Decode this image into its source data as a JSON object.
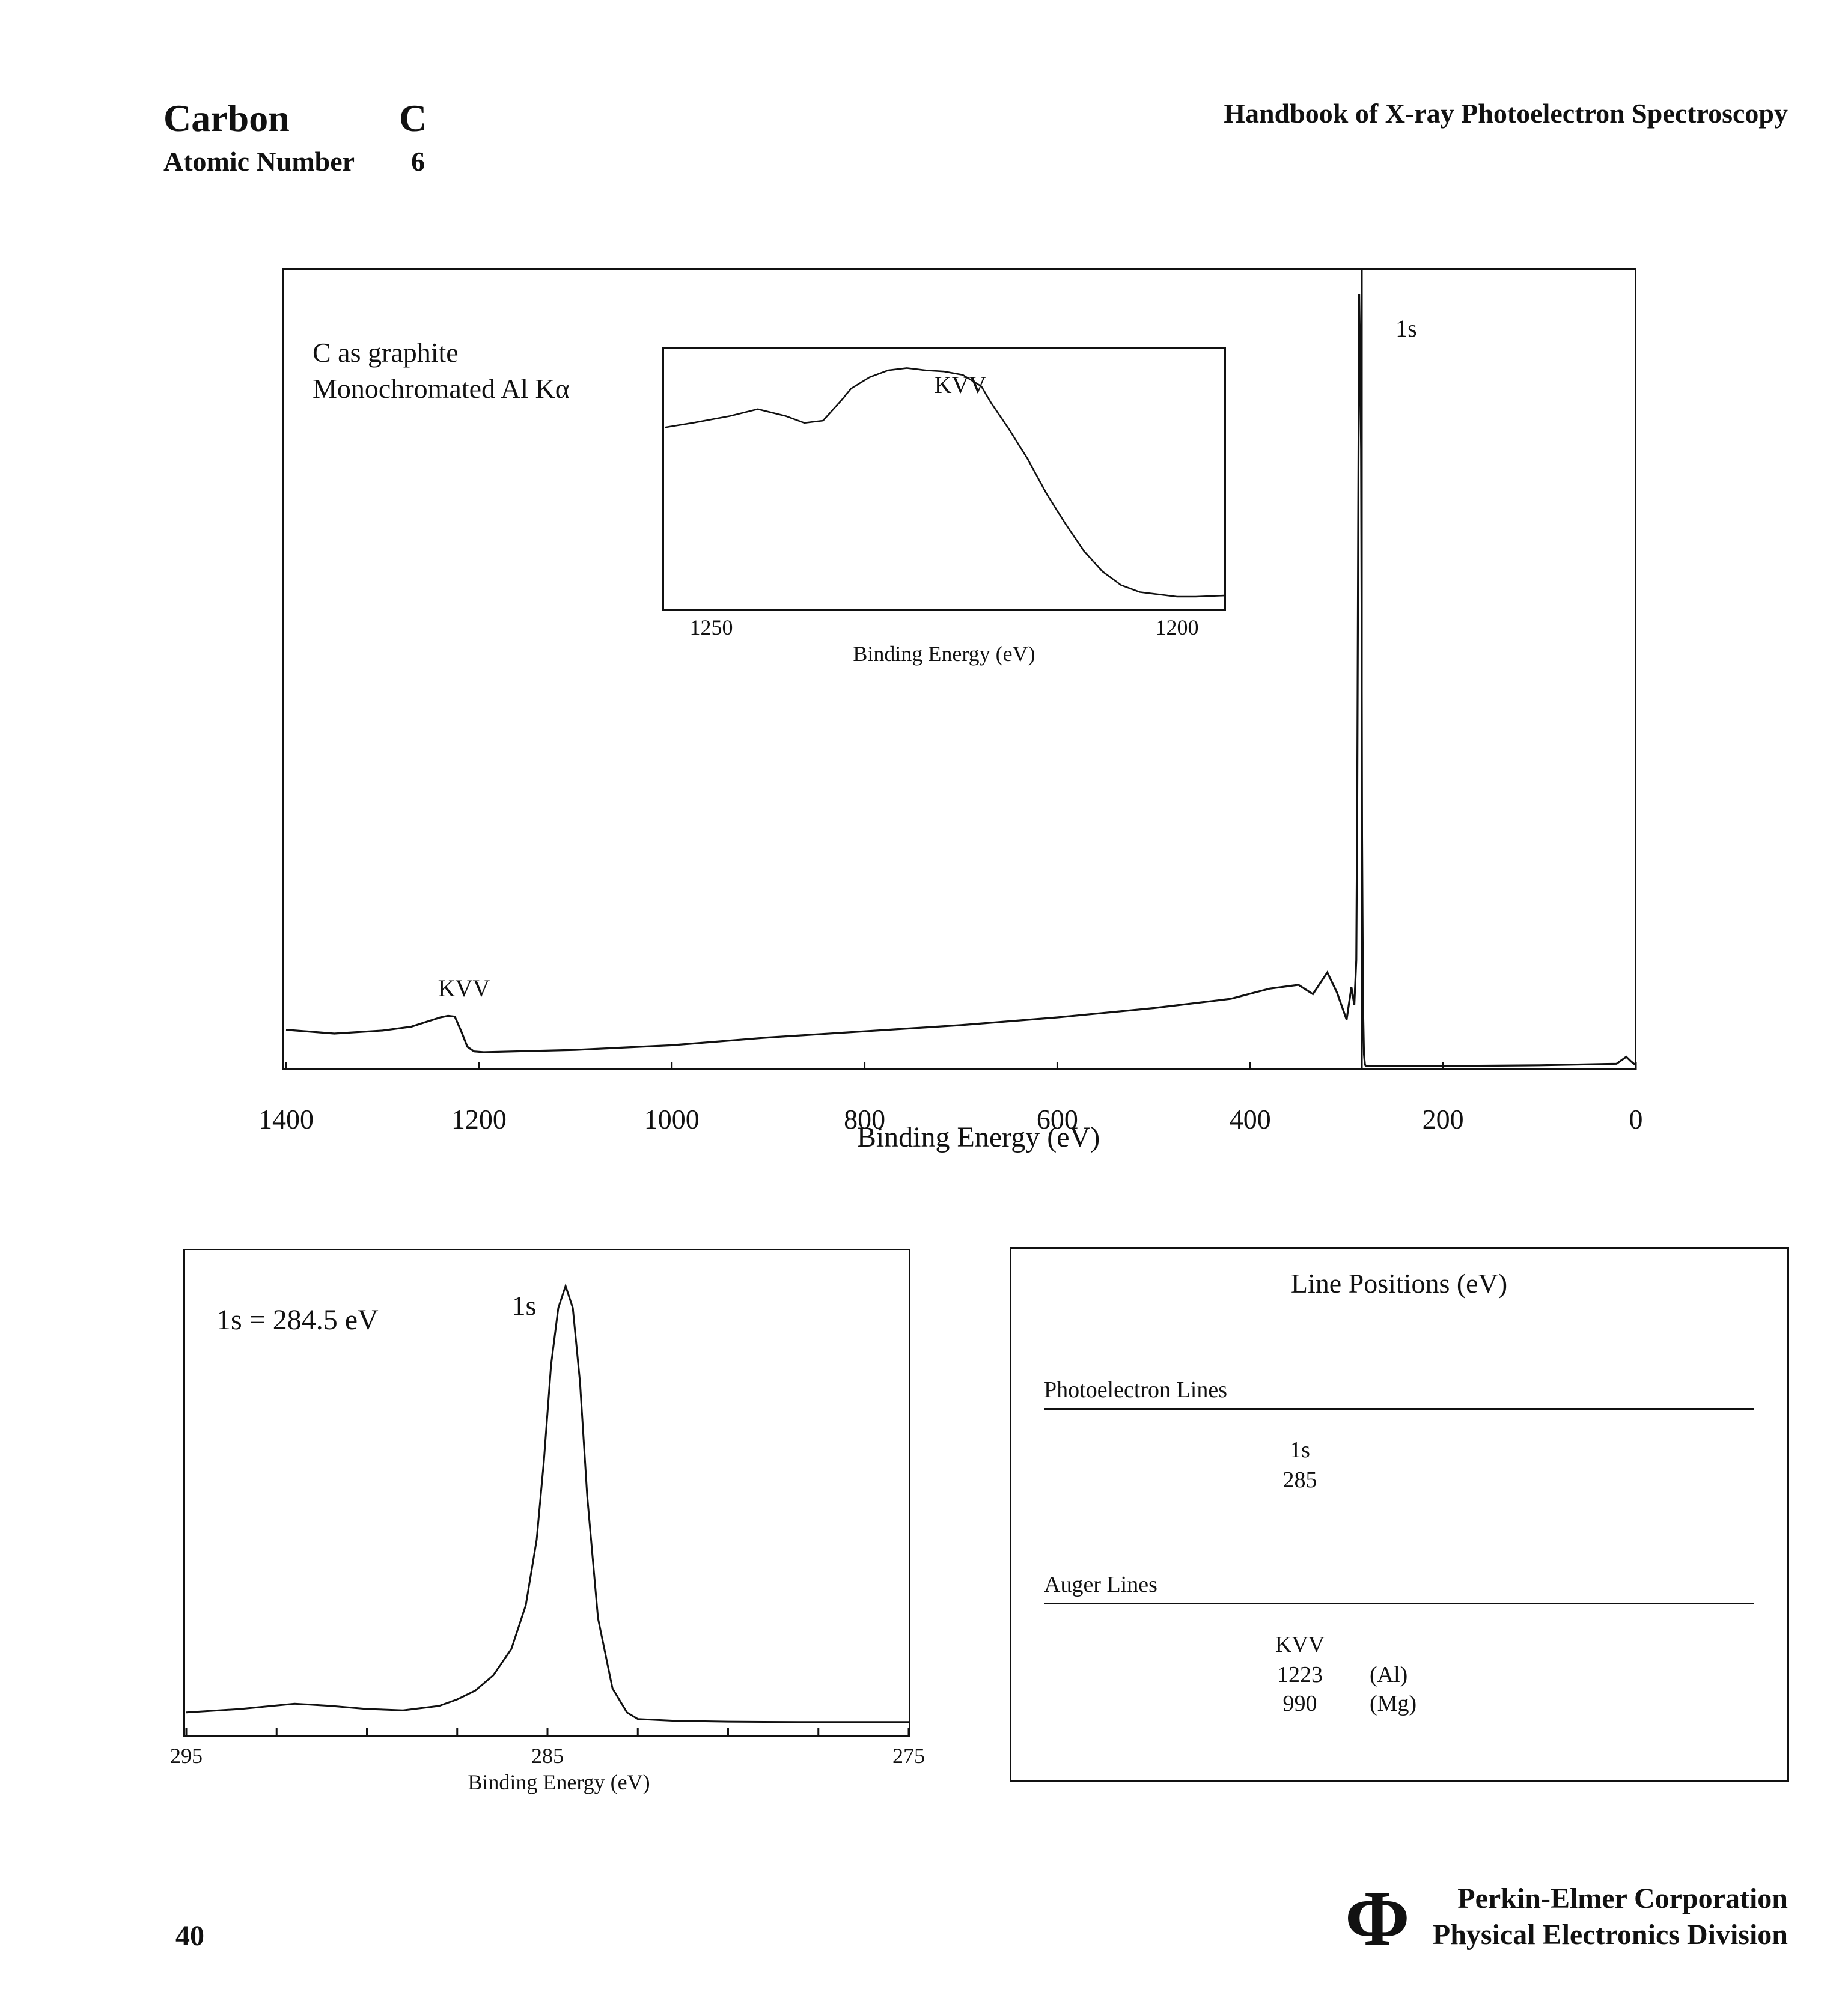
{
  "header": {
    "element_name": "Carbon",
    "element_symbol": "C",
    "atomic_number_label": "Atomic Number",
    "atomic_number": "6",
    "book_title": "Handbook of X-ray Photoelectron Spectroscopy"
  },
  "chart_data": [
    {
      "id": "survey",
      "type": "line",
      "xlabel": "Binding Energy (eV)",
      "ylabel": "",
      "xlim": [
        1400,
        0
      ],
      "x_ticks": [
        "1400",
        "1200",
        "1000",
        "800",
        "600",
        "400",
        "200",
        "0"
      ],
      "annotations": [
        "C as graphite",
        "Monochromated Al Kα",
        "KVV",
        "1s"
      ],
      "x": [
        1400,
        1350,
        1300,
        1270,
        1240,
        1232,
        1225,
        1218,
        1212,
        1205,
        1195,
        1100,
        1000,
        900,
        800,
        700,
        600,
        500,
        420,
        380,
        350,
        335,
        320,
        310,
        300,
        295,
        292,
        290,
        289,
        288,
        287,
        286,
        285,
        284.5,
        284,
        283,
        282,
        281,
        280,
        260,
        200,
        100,
        20,
        10,
        5,
        0
      ],
      "y": [
        5.0,
        4.5,
        4.9,
        5.4,
        6.6,
        6.8,
        6.7,
        4.7,
        2.8,
        2.2,
        2.1,
        2.4,
        3.0,
        4.0,
        4.8,
        5.6,
        6.6,
        7.8,
        9.0,
        10.3,
        10.8,
        9.6,
        12.4,
        9.8,
        6.3,
        10.5,
        8.2,
        14.0,
        35.0,
        70.0,
        100.0,
        92.0,
        80.0,
        60.0,
        30.0,
        8.0,
        1.8,
        0.5,
        0.3,
        0.3,
        0.3,
        0.4,
        0.6,
        1.5,
        0.9,
        0.4
      ],
      "ylim": [
        0,
        100
      ]
    },
    {
      "id": "kvv_inset",
      "type": "line",
      "xlabel": "Binding Energy (eV)",
      "xlim": [
        1255,
        1195
      ],
      "x_ticks": [
        "1250",
        "1200"
      ],
      "annotations": [
        "KVV"
      ],
      "x": [
        1255,
        1252,
        1248,
        1245,
        1242,
        1240,
        1238,
        1236,
        1235,
        1233,
        1231,
        1229,
        1227,
        1225,
        1223,
        1221,
        1220,
        1218,
        1216,
        1214,
        1212,
        1210,
        1208,
        1206,
        1204,
        1202,
        1200,
        1198,
        1195
      ],
      "y": [
        0.74,
        0.76,
        0.79,
        0.82,
        0.79,
        0.76,
        0.77,
        0.86,
        0.91,
        0.96,
        0.99,
        1.0,
        0.99,
        0.985,
        0.97,
        0.92,
        0.85,
        0.73,
        0.6,
        0.45,
        0.32,
        0.2,
        0.11,
        0.05,
        0.02,
        0.01,
        0.0,
        0.0,
        0.005
      ],
      "ylim": [
        -0.05,
        1.08
      ]
    },
    {
      "id": "c1s_highres",
      "type": "line",
      "xlabel": "Binding Energy (eV)",
      "xlim": [
        295,
        275
      ],
      "x_ticks": [
        "295",
        "285",
        "275"
      ],
      "annotations": [
        "1s = 284.5 eV",
        "1s"
      ],
      "x": [
        295,
        293.5,
        292,
        291,
        290,
        289,
        288,
        287.5,
        287,
        286.5,
        286,
        285.6,
        285.3,
        285.1,
        284.9,
        284.7,
        284.5,
        284.3,
        284.1,
        283.9,
        283.6,
        283.2,
        282.8,
        282.5,
        281.5,
        280,
        278,
        276,
        275
      ],
      "y": [
        0.025,
        0.033,
        0.045,
        0.04,
        0.033,
        0.03,
        0.04,
        0.055,
        0.075,
        0.11,
        0.17,
        0.27,
        0.42,
        0.6,
        0.82,
        0.95,
        1.0,
        0.95,
        0.78,
        0.52,
        0.24,
        0.08,
        0.025,
        0.01,
        0.006,
        0.004,
        0.003,
        0.003,
        0.003
      ],
      "ylim": [
        0,
        1.0
      ]
    }
  ],
  "line_positions": {
    "title": "Line Positions (eV)",
    "photoelectron_heading": "Photoelectron Lines",
    "photoelectron": [
      {
        "line": "1s",
        "value": "285"
      }
    ],
    "auger_heading": "Auger Lines",
    "auger": {
      "line": "KVV",
      "entries": [
        {
          "value": "1223",
          "source": "(Al)"
        },
        {
          "value": "990",
          "source": "(Mg)"
        }
      ]
    }
  },
  "footer": {
    "page_number": "40",
    "logo_symbol": "Φ",
    "company_line1": "Perkin-Elmer Corporation",
    "company_line2": "Physical Electronics Division"
  }
}
